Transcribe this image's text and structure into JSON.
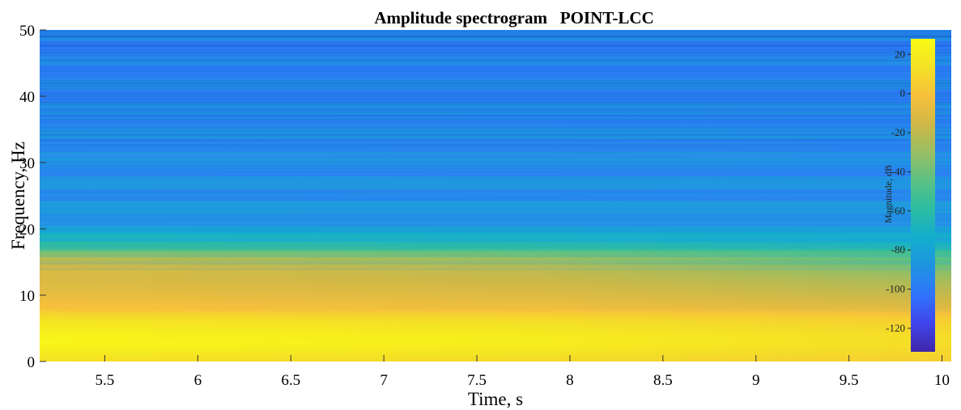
{
  "chart_data": {
    "type": "heatmap",
    "title": "Amplitude spectrogram   POINT-LCC",
    "xlabel": "Time, s",
    "ylabel": "Frequency, Hz",
    "xlim": [
      5.15,
      10.05
    ],
    "ylim": [
      0,
      50
    ],
    "x_ticks": [
      5.5,
      6,
      6.5,
      7,
      7.5,
      8,
      8.5,
      9,
      9.5,
      10
    ],
    "x_tick_labels": [
      "5.5",
      "6",
      "6.5",
      "7",
      "7.5",
      "8",
      "8.5",
      "9",
      "9.5",
      "10"
    ],
    "y_ticks": [
      0,
      10,
      20,
      30,
      40,
      50
    ],
    "y_tick_labels": [
      "0",
      "10",
      "20",
      "30",
      "40",
      "50"
    ],
    "colorbar": {
      "label": "Magnitude, dB",
      "range": [
        -132,
        28
      ],
      "ticks": [
        20,
        0,
        -20,
        -40,
        -60,
        -80,
        -100,
        -120
      ],
      "tick_labels": [
        "20",
        "0",
        "-20",
        "-40",
        "-60",
        "-80",
        "-100",
        "-120"
      ],
      "colormap": "parula",
      "colormap_stops": [
        "#3e26a8",
        "#4145ec",
        "#2f74fb",
        "#1f93e1",
        "#13aece",
        "#2bbca2",
        "#59c185",
        "#98be63",
        "#cfb847",
        "#f7c03c",
        "#f4e125",
        "#f9fb15"
      ],
      "placement": "inside-right"
    },
    "frequency_profile_db": {
      "freq_hz": [
        0,
        2,
        3,
        4,
        5,
        6,
        7,
        8,
        10,
        12,
        14,
        15,
        16,
        17,
        18,
        19,
        20,
        22,
        25,
        30,
        35,
        40,
        45,
        50
      ],
      "magnitude_at_5_2s": [
        12,
        22,
        25,
        23,
        20,
        16,
        10,
        0,
        -6,
        -11,
        -13,
        -20,
        -30,
        -48,
        -58,
        -70,
        -84,
        -87,
        -90,
        -92,
        -93,
        -95,
        -96,
        -97
      ],
      "magnitude_at_10s": [
        5,
        10,
        12,
        11,
        9,
        6,
        2,
        -10,
        -18,
        -25,
        -35,
        -45,
        -50,
        -58,
        -68,
        -76,
        -85,
        -88,
        -91,
        -93,
        -94,
        -95,
        -96,
        -97
      ]
    }
  }
}
